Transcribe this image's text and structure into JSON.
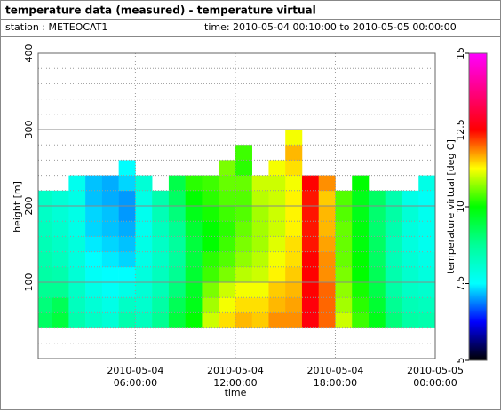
{
  "chart_data": {
    "type": "heatmap",
    "title": "temperature data (measured) - temperature virtual",
    "station": "station : METEOCAT1",
    "period": "time: 2010-05-04 00:10:00 to 2010-05-05 00:00:00",
    "x_label": "time",
    "y_label": "height [m]",
    "colorbar_label": "temperature virtual [deg C]",
    "xlim": [
      "2010-05-04 00:10:00",
      "2010-05-05 00:00:00"
    ],
    "xticks": [
      {
        "value": "2010-05-04 06:00:00",
        "label": "2010-05-04 06:00:00"
      },
      {
        "value": "2010-05-04 12:00:00",
        "label": "2010-05-04 12:00:00"
      },
      {
        "value": "2010-05-04 18:00:00",
        "label": "2010-05-04 18:00:00"
      },
      {
        "value": "2010-05-05 00:00:00",
        "label": "2010-05-05 00:00:00"
      }
    ],
    "ylim": [
      0,
      400
    ],
    "yticks": [
      100,
      200,
      300,
      400
    ],
    "clim": [
      5,
      15
    ],
    "cticks": [
      5,
      7.5,
      10,
      12.5,
      15
    ],
    "grid": true,
    "colormap": [
      "#000000",
      "#0000ff",
      "#00ffff",
      "#00ff99",
      "#00ff00",
      "#ffff00",
      "#ff0000",
      "#ff0080",
      "#ff00ff"
    ],
    "x_bins": [
      "2010-05-04 00:10:00",
      "2010-05-04 01:00:00",
      "2010-05-04 02:00:00",
      "2010-05-04 03:00:00",
      "2010-05-04 04:00:00",
      "2010-05-04 05:00:00",
      "2010-05-04 06:00:00",
      "2010-05-04 07:00:00",
      "2010-05-04 08:00:00",
      "2010-05-04 09:00:00",
      "2010-05-04 10:00:00",
      "2010-05-04 11:00:00",
      "2010-05-04 12:00:00",
      "2010-05-04 13:00:00",
      "2010-05-04 14:00:00",
      "2010-05-04 15:00:00",
      "2010-05-04 16:00:00",
      "2010-05-04 17:00:00",
      "2010-05-04 18:00:00",
      "2010-05-04 19:00:00",
      "2010-05-04 20:00:00",
      "2010-05-04 21:00:00",
      "2010-05-04 22:00:00",
      "2010-05-04 23:00:00",
      "2010-05-05 00:00:00"
    ],
    "y_bins": [
      40,
      60,
      80,
      100,
      120,
      140,
      160,
      180,
      200,
      220,
      240,
      260,
      280,
      300
    ],
    "values": [
      [
        9.2,
        9,
        8.8,
        8.6,
        8.5,
        8.4,
        8.3,
        8.2,
        8.2,
        null,
        null,
        null,
        null
      ],
      [
        9.5,
        9.3,
        8.8,
        8.5,
        8.3,
        8.2,
        8.1,
        8,
        8,
        null,
        null,
        null,
        null
      ],
      [
        8.5,
        8.3,
        8.2,
        8,
        7.9,
        7.9,
        7.8,
        7.8,
        7.8,
        7.7,
        null,
        null,
        null
      ],
      [
        8.2,
        8,
        7.8,
        7.6,
        7.5,
        7.4,
        7.3,
        7.3,
        7.2,
        7.2,
        null,
        null,
        null
      ],
      [
        8,
        7.8,
        7.6,
        7.5,
        7.4,
        7.3,
        7.2,
        7.2,
        7.1,
        7.1,
        null,
        null,
        null
      ],
      [
        8.5,
        8.2,
        7.8,
        7.5,
        7.3,
        7.2,
        7.1,
        7,
        7,
        7.3,
        7.5,
        null,
        null
      ],
      [
        8.3,
        8.1,
        8,
        7.9,
        7.8,
        7.8,
        7.7,
        7.7,
        7.8,
        8,
        null,
        null,
        null
      ],
      [
        8.8,
        8.6,
        8.4,
        8.3,
        8.2,
        8.2,
        8.3,
        8.4,
        8.5,
        null,
        null,
        null,
        null
      ],
      [
        9.5,
        9.3,
        9,
        8.8,
        8.7,
        8.7,
        8.8,
        9,
        9.2,
        9.4,
        null,
        null,
        null
      ],
      [
        10,
        9.8,
        9.7,
        9.6,
        9.5,
        9.5,
        9.6,
        9.8,
        10,
        10.2,
        null,
        null,
        null
      ],
      [
        11,
        10.8,
        10.6,
        10.3,
        10.2,
        10,
        10,
        10.1,
        10.2,
        10.3,
        null,
        null,
        null
      ],
      [
        11.4,
        11.2,
        11,
        10.6,
        10.4,
        10.3,
        10.2,
        10.3,
        10.4,
        10.5,
        10.6,
        null,
        null
      ],
      [
        11.6,
        11.4,
        11.2,
        10.9,
        10.7,
        10.6,
        10.5,
        10.4,
        10.4,
        10.5,
        10.2,
        10.3,
        null
      ],
      [
        11.5,
        11.4,
        11.2,
        11,
        10.9,
        10.8,
        10.8,
        10.8,
        10.9,
        11,
        null,
        null,
        null
      ],
      [
        11.8,
        11.6,
        11.5,
        11.3,
        11.2,
        11.1,
        11,
        11,
        11,
        11,
        11.2,
        null,
        null
      ],
      [
        11.8,
        11.7,
        11.6,
        11.5,
        11.4,
        11.4,
        11.3,
        11.3,
        11.3,
        11.2,
        11.4,
        11.6,
        11.2
      ],
      [
        12.6,
        12.6,
        12.5,
        12.5,
        12.5,
        12.4,
        12.4,
        12.4,
        12.4,
        12.5,
        null,
        null,
        null
      ],
      [
        12,
        12,
        12,
        11.8,
        11.8,
        11.7,
        11.6,
        11.6,
        11.5,
        11.8,
        null,
        null,
        null
      ],
      [
        11,
        10.8,
        10.7,
        10.6,
        10.5,
        10.5,
        10.5,
        10.4,
        10.4,
        null,
        null,
        null,
        null
      ],
      [
        10.3,
        10.2,
        10.1,
        10,
        10,
        9.9,
        9.9,
        9.8,
        9.8,
        10,
        null,
        null,
        null
      ],
      [
        9.8,
        9.6,
        9.4,
        9.3,
        9.2,
        9.2,
        9.1,
        9.1,
        9.2,
        null,
        null,
        null,
        null
      ],
      [
        9,
        8.8,
        8.6,
        8.5,
        8.4,
        8.4,
        8.5,
        8.6,
        8.5,
        null,
        null,
        null,
        null
      ],
      [
        8.6,
        8.4,
        8.2,
        8.1,
        8,
        7.9,
        7.9,
        8,
        7.8,
        null,
        null,
        null,
        null
      ],
      [
        8.5,
        8.3,
        8.1,
        7.9,
        7.8,
        7.7,
        7.7,
        7.7,
        7.6,
        7.8,
        null,
        null,
        null
      ]
    ]
  }
}
